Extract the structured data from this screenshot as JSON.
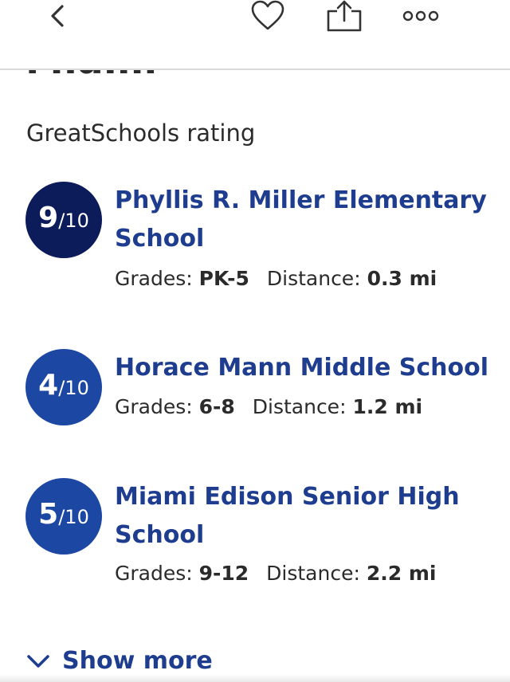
{
  "header": {
    "back": "back-icon",
    "favorite": "heart-icon",
    "share": "share-icon",
    "more": "more-icon"
  },
  "city": "Miami",
  "section": "GreatSchools rating",
  "schools": [
    {
      "rating": "9",
      "scale": "/10",
      "name": "Phyllis R. Miller Elementary School",
      "grades_label": "Grades:",
      "grades": "PK-5",
      "distance_label": "Distance:",
      "distance": "0.3 mi"
    },
    {
      "rating": "4",
      "scale": "/10",
      "name": "Horace Mann Middle School",
      "grades_label": "Grades:",
      "grades": "6-8",
      "distance_label": "Distance:",
      "distance": "1.2 mi"
    },
    {
      "rating": "5",
      "scale": "/10",
      "name": "Miami Edison Senior High School",
      "grades_label": "Grades:",
      "grades": "9-12",
      "distance_label": "Distance:",
      "distance": "2.2 mi"
    }
  ],
  "show_more": "Show more",
  "colors": {
    "accent": "#1f3d8f",
    "badge_dark": "#0c1c5a",
    "badge_mid": "#1c47a3"
  }
}
